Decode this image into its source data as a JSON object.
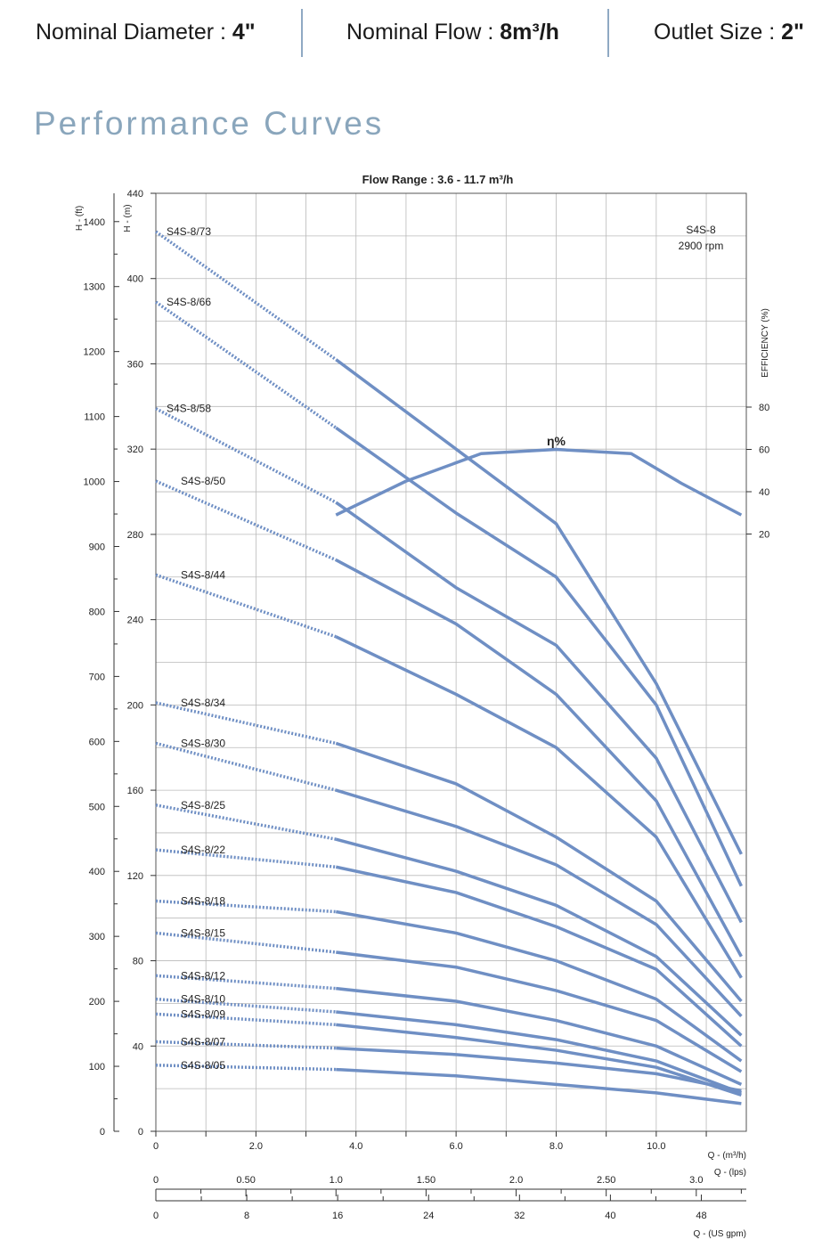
{
  "header": {
    "items": [
      {
        "label": "Nominal Diameter : ",
        "value": "4\""
      },
      {
        "label": "Nominal Flow : ",
        "value": "8m³/h"
      },
      {
        "label": "Outlet Size : ",
        "value": "2\""
      }
    ]
  },
  "section_title": "Performance Curves",
  "colors": {
    "curve": "#6f8fc4",
    "grid": "#b9b9b9",
    "title_accent": "#8aa6bc"
  },
  "chart_data": {
    "type": "line",
    "title": "Flow Range : 3.6 - 11.7 m³/h",
    "model_label": "S4S-8",
    "speed_label": "2900 rpm",
    "efficiency_label": "η%",
    "x_axes": {
      "flow_m3h": {
        "label": "Q - (m³/h)",
        "range": [
          0,
          11.8
        ],
        "ticks": [
          "0",
          "2.0",
          "4.0",
          "6.0",
          "8.0",
          "10.0"
        ]
      },
      "flow_lps": {
        "label": "Q - (lps)",
        "ticks": [
          "0",
          "0.50",
          "1.0",
          "1.50",
          "2.0",
          "2.50",
          "3.0"
        ]
      },
      "flow_usgpm": {
        "label": "Q - (US gpm)",
        "ticks": [
          "0",
          "8",
          "16",
          "24",
          "32",
          "40",
          "48"
        ]
      }
    },
    "y_axes": {
      "head_ft": {
        "label": "H - (ft)",
        "ticks": [
          "0",
          "100",
          "200",
          "300",
          "400",
          "500",
          "600",
          "700",
          "800",
          "900",
          "1000",
          "1100",
          "1200",
          "1300",
          "1400"
        ]
      },
      "head_m": {
        "label": "H - (m)",
        "range": [
          0,
          440
        ],
        "ticks": [
          "0",
          "40",
          "80",
          "120",
          "160",
          "200",
          "240",
          "280",
          "320",
          "360",
          "400",
          "440"
        ]
      },
      "efficiency": {
        "label": "EFFICIENCY (%)",
        "ticks": [
          "20",
          "40",
          "60",
          "80"
        ]
      }
    },
    "grid": true,
    "recommended_range_m3h": [
      3.6,
      11.7
    ],
    "series": [
      {
        "name": "S4S-8/73",
        "x": [
          0,
          3.6,
          6.0,
          8.0,
          10.0,
          11.7
        ],
        "y": [
          422,
          362,
          320,
          285,
          210,
          130
        ]
      },
      {
        "name": "S4S-8/66",
        "x": [
          0,
          3.6,
          6.0,
          8.0,
          10.0,
          11.7
        ],
        "y": [
          389,
          330,
          290,
          260,
          200,
          115
        ]
      },
      {
        "name": "S4S-8/58",
        "x": [
          0,
          3.6,
          6.0,
          8.0,
          10.0,
          11.7
        ],
        "y": [
          339,
          295,
          255,
          228,
          175,
          98
        ]
      },
      {
        "name": "S4S-8/50",
        "x": [
          0,
          3.6,
          6.0,
          8.0,
          10.0,
          11.7
        ],
        "y": [
          305,
          268,
          238,
          205,
          155,
          82
        ]
      },
      {
        "name": "S4S-8/44",
        "x": [
          0,
          3.6,
          6.0,
          8.0,
          10.0,
          11.7
        ],
        "y": [
          261,
          232,
          205,
          180,
          138,
          72
        ]
      },
      {
        "name": "S4S-8/34",
        "x": [
          0,
          3.6,
          6.0,
          8.0,
          10.0,
          11.7
        ],
        "y": [
          201,
          182,
          163,
          138,
          108,
          61
        ]
      },
      {
        "name": "S4S-8/30",
        "x": [
          0,
          3.6,
          6.0,
          8.0,
          10.0,
          11.7
        ],
        "y": [
          182,
          160,
          143,
          125,
          97,
          54
        ]
      },
      {
        "name": "S4S-8/25",
        "x": [
          0,
          3.6,
          6.0,
          8.0,
          10.0,
          11.7
        ],
        "y": [
          153,
          137,
          122,
          106,
          82,
          45
        ]
      },
      {
        "name": "S4S-8/22",
        "x": [
          0,
          3.6,
          6.0,
          8.0,
          10.0,
          11.7
        ],
        "y": [
          132,
          124,
          112,
          96,
          76,
          40
        ]
      },
      {
        "name": "S4S-8/18",
        "x": [
          0,
          3.6,
          6.0,
          8.0,
          10.0,
          11.7
        ],
        "y": [
          108,
          103,
          93,
          80,
          62,
          33
        ]
      },
      {
        "name": "S4S-8/15",
        "x": [
          0,
          3.6,
          6.0,
          8.0,
          10.0,
          11.7
        ],
        "y": [
          93,
          84,
          77,
          66,
          52,
          28
        ]
      },
      {
        "name": "S4S-8/12",
        "x": [
          0,
          3.6,
          6.0,
          8.0,
          10.0,
          11.7
        ],
        "y": [
          73,
          67,
          61,
          52,
          40,
          22
        ]
      },
      {
        "name": "S4S-8/10",
        "x": [
          0,
          3.6,
          6.0,
          8.0,
          10.0,
          11.7
        ],
        "y": [
          62,
          56,
          50,
          43,
          33,
          18
        ]
      },
      {
        "name": "S4S-8/09",
        "x": [
          0,
          3.6,
          6.0,
          8.0,
          10.0,
          11.7
        ],
        "y": [
          55,
          50,
          44,
          38,
          30,
          17
        ]
      },
      {
        "name": "S4S-8/07",
        "x": [
          0,
          3.6,
          6.0,
          8.0,
          10.0,
          11.7
        ],
        "y": [
          42,
          39,
          36,
          32,
          27,
          19
        ]
      },
      {
        "name": "S4S-8/05",
        "x": [
          0,
          3.6,
          6.0,
          8.0,
          10.0,
          11.7
        ],
        "y": [
          31,
          29,
          26,
          22,
          18,
          13
        ]
      }
    ],
    "efficiency_curve": {
      "x": [
        3.6,
        5.0,
        6.5,
        8.0,
        9.5,
        10.5,
        11.7
      ],
      "y": [
        29,
        45,
        58,
        60,
        58,
        44,
        29
      ]
    }
  }
}
